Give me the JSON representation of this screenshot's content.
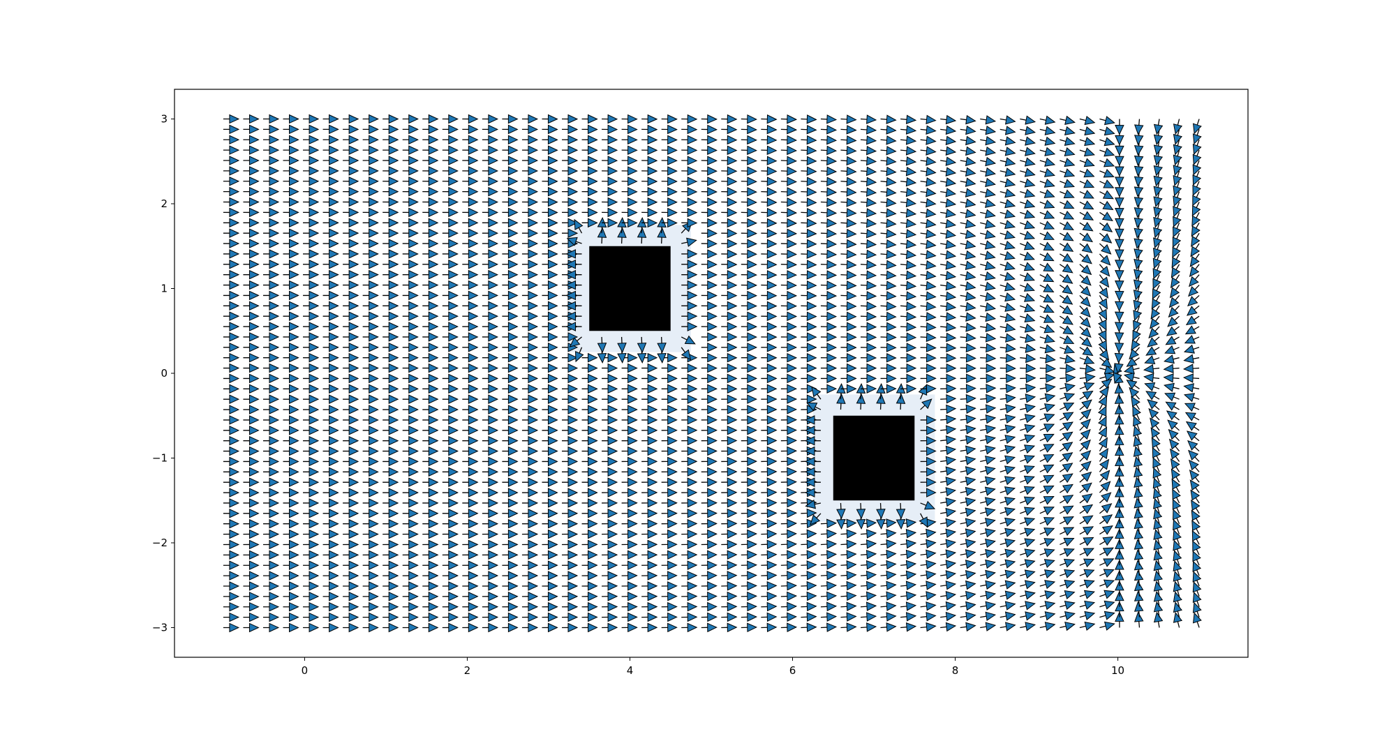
{
  "chart_data": {
    "type": "quiver",
    "title": "",
    "xlabel": "",
    "ylabel": "",
    "xlim": [
      -1.6,
      11.6
    ],
    "ylim": [
      -3.35,
      3.35
    ],
    "x_ticks": [
      0,
      2,
      4,
      6,
      8,
      10
    ],
    "x_tick_labels": [
      "0",
      "2",
      "4",
      "6",
      "8",
      "10"
    ],
    "y_ticks": [
      3,
      2,
      1,
      0,
      -1,
      -2,
      -3
    ],
    "y_tick_labels": [
      "3",
      "2",
      "1",
      "0",
      "−1",
      "−2",
      "−3"
    ],
    "grid": false,
    "field": {
      "description": "potential-field navigation: uniform attraction toward +x, converging to goal, deflected by obstacles",
      "x_range": [
        -1,
        11
      ],
      "y_range": [
        -3,
        3
      ],
      "nx": 50,
      "ny": 50,
      "goal": [
        10,
        0
      ],
      "goal_radius": 0.45,
      "obstacle_influence": 0.25,
      "arrow_color": "#1f77b4",
      "edge_color": "#000000"
    },
    "obstacles": [
      {
        "name": "obstacle-1",
        "x": [
          3.5,
          4.5
        ],
        "y": [
          0.5,
          1.5
        ],
        "color": "#000000",
        "halo_color": "#e6eef7"
      },
      {
        "name": "obstacle-2",
        "x": [
          6.5,
          7.5
        ],
        "y": [
          -1.5,
          -0.5
        ],
        "color": "#000000",
        "halo_color": "#e6eef7"
      }
    ]
  }
}
